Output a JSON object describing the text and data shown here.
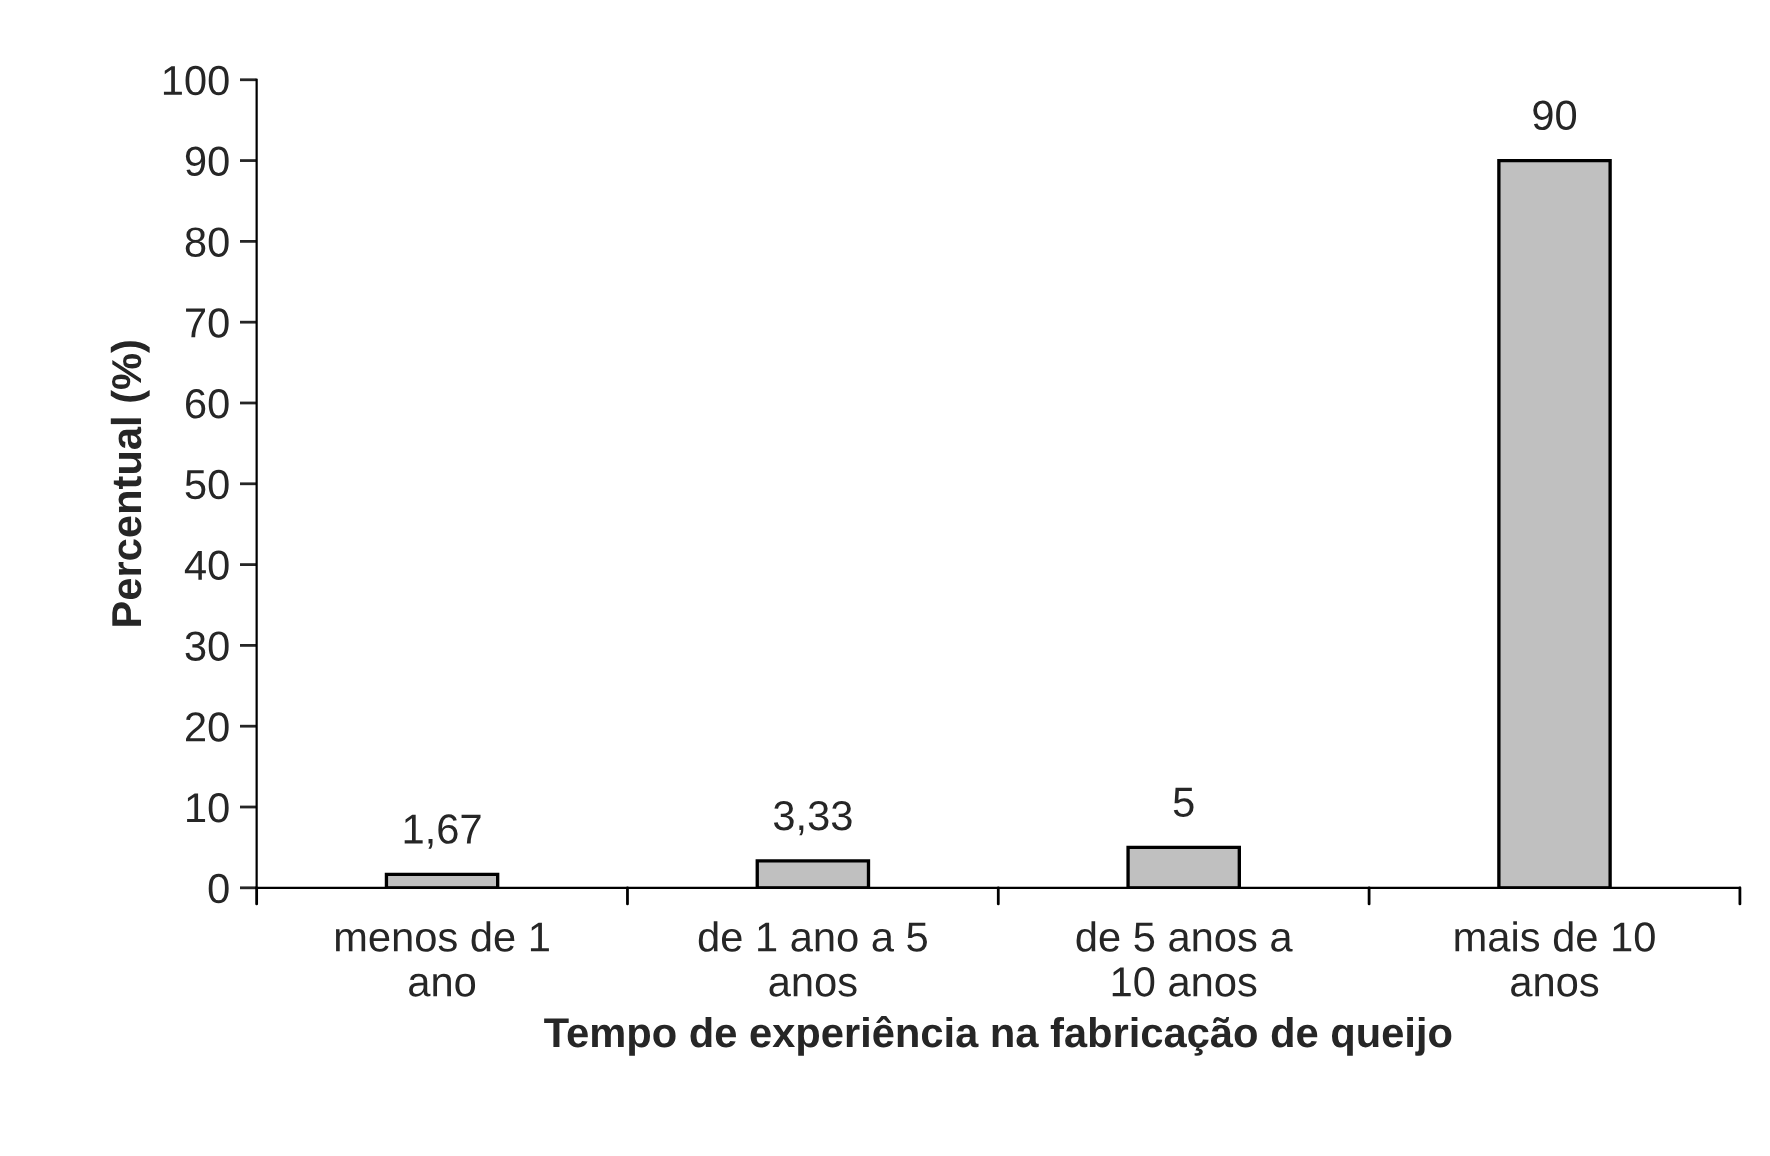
{
  "chart_data": {
    "type": "bar",
    "xlabel": "Tempo de experiência na fabricação de queijo",
    "ylabel": "Percentual (%)",
    "categories": [
      "menos de 1\nano",
      "de 1 ano a 5\nanos",
      "de 5 anos a\n10 anos",
      "mais de 10\nanos"
    ],
    "values": [
      1.67,
      3.33,
      5,
      90
    ],
    "value_labels": [
      "1,67",
      "3,33",
      "5",
      "90"
    ],
    "color": "#c0c0c0",
    "ylim": [
      0,
      100
    ],
    "yticks": [
      0,
      10,
      20,
      30,
      40,
      50,
      60,
      70,
      80,
      90,
      100
    ],
    "grid": false,
    "legend": false
  }
}
